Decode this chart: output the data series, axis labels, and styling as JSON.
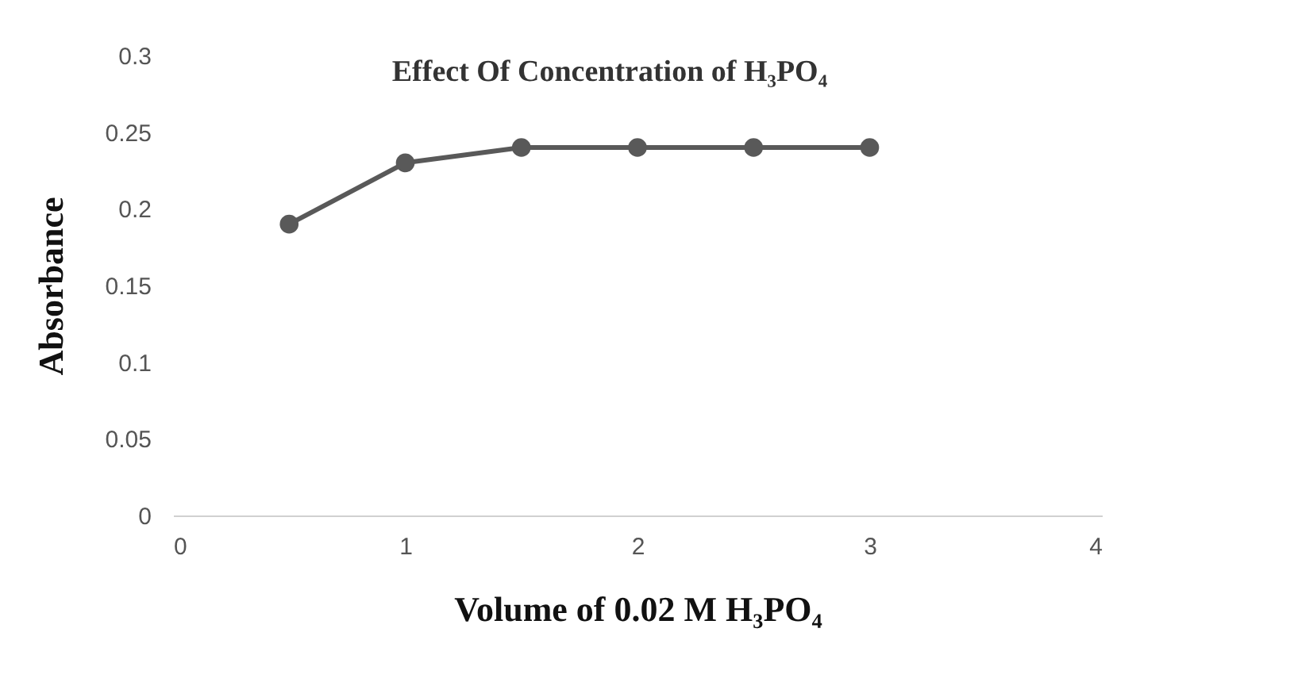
{
  "chart_data": {
    "type": "line",
    "title": "Effect Of Concentration of H₃PO₄",
    "xlabel": "Volume of 0.02 M H₃PO₄",
    "ylabel": "Absorbance",
    "x": [
      0.5,
      1,
      1.5,
      2,
      2.5,
      3
    ],
    "series": [
      {
        "color": "#595959",
        "values": [
          0.19,
          0.23,
          0.24,
          0.24,
          0.24,
          0.24
        ]
      }
    ],
    "xlim": [
      0,
      4
    ],
    "xticks": [
      0,
      1,
      2,
      3,
      4
    ],
    "ylim": [
      0,
      0.3
    ],
    "yticks": [
      0,
      0.05,
      0.1,
      0.15,
      0.2,
      0.25,
      0.3
    ],
    "grid": false,
    "marker": "circle",
    "line_style": "solid"
  }
}
